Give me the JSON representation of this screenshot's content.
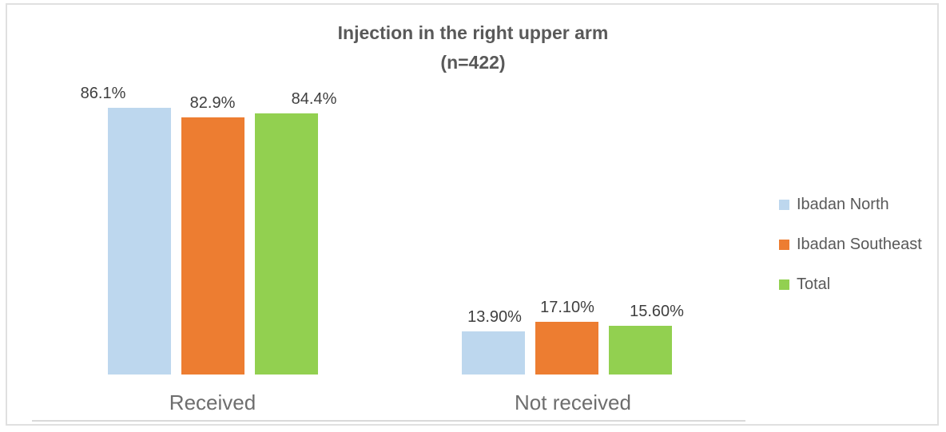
{
  "chart_data": {
    "type": "bar",
    "title": "Injection in the right upper arm",
    "subtitle": "(n=422)",
    "categories": [
      "Received",
      "Not received"
    ],
    "series": [
      {
        "name": "Ibadan North",
        "color": "#BDD7EE",
        "values": [
          86.1,
          13.9
        ],
        "labels": [
          "86.1%",
          "13.90%"
        ]
      },
      {
        "name": "Ibadan Southeast",
        "color": "#ED7D31",
        "values": [
          82.9,
          17.1
        ],
        "labels": [
          "82.9%",
          "17.10%"
        ]
      },
      {
        "name": "Total",
        "color": "#92D050",
        "values": [
          84.4,
          15.6
        ],
        "labels": [
          "84.4%",
          "15.60%"
        ]
      }
    ],
    "ylim": [
      0,
      100
    ],
    "grid": false,
    "y_axis_visible": false,
    "legend_position": "right"
  },
  "colors": {
    "title_text": "#595959",
    "data_label_text": "#3F3F3F",
    "category_label_text": "#6E6E6E",
    "legend_text": "#595959",
    "axis_line": "#D9D9D9",
    "chart_border": "#E0E0E0",
    "background": "#FFFFFF"
  }
}
